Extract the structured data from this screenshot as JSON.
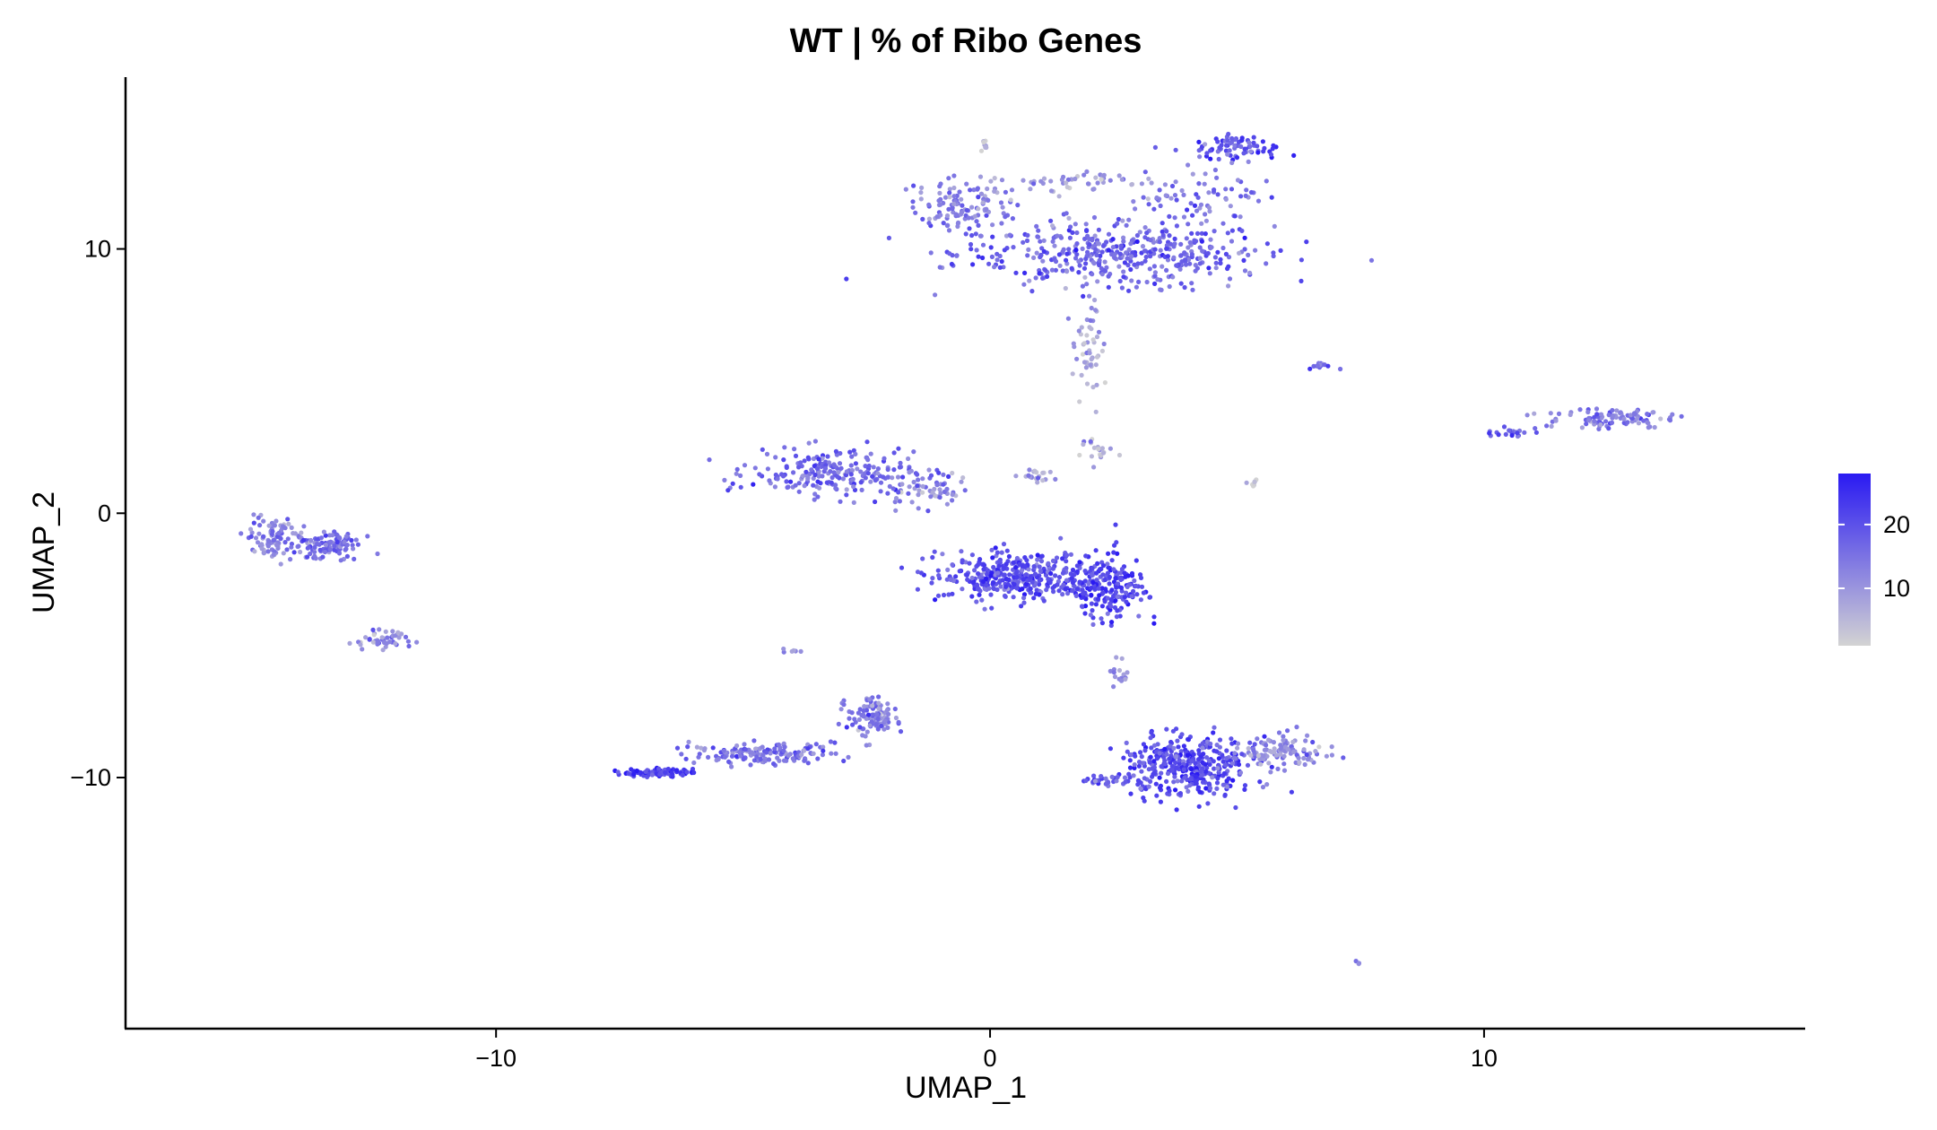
{
  "chart_data": {
    "type": "scatter",
    "title": "WT | % of Ribo Genes",
    "xlabel": "UMAP_1",
    "ylabel": "UMAP_2",
    "xlim": [
      -17.5,
      16.5
    ],
    "ylim": [
      -19.5,
      16.5
    ],
    "xticks": [
      {
        "value": -10,
        "label": "−10"
      },
      {
        "value": 0,
        "label": "0"
      },
      {
        "value": 10,
        "label": "10"
      }
    ],
    "yticks": [
      {
        "value": 10,
        "label": "10"
      },
      {
        "value": 0,
        "label": "0"
      },
      {
        "value": -10,
        "label": "−10"
      }
    ],
    "grid": false,
    "legend": {
      "position": "right",
      "type": "colorbar",
      "range": [
        1,
        28
      ],
      "ticks": [
        {
          "value": 20,
          "label": "20"
        },
        {
          "value": 10,
          "label": "10"
        }
      ],
      "low_color": "#d3d3d3",
      "high_color": "#2a1af2"
    },
    "clusters": [
      {
        "center": [
          2.5,
          9.8
        ],
        "spread": [
          2.9,
          1.1
        ],
        "n": 420,
        "level": 17
      },
      {
        "center": [
          4.0,
          12.0
        ],
        "spread": [
          1.8,
          1.0
        ],
        "n": 80,
        "level": 15
      },
      {
        "center": [
          -0.6,
          11.6
        ],
        "spread": [
          0.9,
          0.9
        ],
        "n": 120,
        "level": 13
      },
      {
        "center": [
          1.8,
          12.6
        ],
        "spread": [
          1.6,
          0.35
        ],
        "n": 50,
        "level": 9
      },
      {
        "center": [
          5.0,
          13.8
        ],
        "spread": [
          0.8,
          0.45
        ],
        "n": 80,
        "level": 20
      },
      {
        "center": [
          2.0,
          6.2
        ],
        "spread": [
          0.25,
          1.8
        ],
        "n": 50,
        "level": 7
      },
      {
        "center": [
          2.1,
          2.4
        ],
        "spread": [
          0.35,
          0.5
        ],
        "n": 20,
        "level": 6
      },
      {
        "center": [
          1.0,
          1.4
        ],
        "spread": [
          0.35,
          0.3
        ],
        "n": 20,
        "level": 8
      },
      {
        "center": [
          -3.2,
          1.5
        ],
        "spread": [
          1.5,
          0.75
        ],
        "n": 220,
        "level": 16
      },
      {
        "center": [
          -1.2,
          0.9
        ],
        "spread": [
          0.8,
          0.6
        ],
        "n": 60,
        "level": 12
      },
      {
        "center": [
          0.5,
          -2.4
        ],
        "spread": [
          1.4,
          0.8
        ],
        "n": 360,
        "level": 20
      },
      {
        "center": [
          2.4,
          -2.8
        ],
        "spread": [
          0.7,
          1.2
        ],
        "n": 200,
        "level": 22
      },
      {
        "center": [
          2.6,
          -6.0
        ],
        "spread": [
          0.15,
          0.7
        ],
        "n": 15,
        "level": 12
      },
      {
        "center": [
          4.0,
          -9.6
        ],
        "spread": [
          1.2,
          1.0
        ],
        "n": 360,
        "level": 21
      },
      {
        "center": [
          5.8,
          -9.0
        ],
        "spread": [
          0.9,
          0.6
        ],
        "n": 120,
        "level": 11
      },
      {
        "center": [
          2.4,
          -10.1
        ],
        "spread": [
          0.5,
          0.25
        ],
        "n": 30,
        "level": 18
      },
      {
        "center": [
          -2.4,
          -7.7
        ],
        "spread": [
          0.45,
          0.7
        ],
        "n": 110,
        "level": 14
      },
      {
        "center": [
          -4.6,
          -9.1
        ],
        "spread": [
          1.3,
          0.35
        ],
        "n": 150,
        "level": 15
      },
      {
        "center": [
          -6.7,
          -9.8
        ],
        "spread": [
          0.7,
          0.12
        ],
        "n": 80,
        "level": 22
      },
      {
        "center": [
          -14.5,
          -0.9
        ],
        "spread": [
          0.5,
          0.8
        ],
        "n": 100,
        "level": 13
      },
      {
        "center": [
          -13.4,
          -1.2
        ],
        "spread": [
          0.6,
          0.45
        ],
        "n": 110,
        "level": 15
      },
      {
        "center": [
          -12.4,
          -4.8
        ],
        "spread": [
          0.55,
          0.35
        ],
        "n": 50,
        "level": 12
      },
      {
        "center": [
          12.6,
          3.6
        ],
        "spread": [
          1.2,
          0.4
        ],
        "n": 100,
        "level": 14
      },
      {
        "center": [
          10.6,
          3.05
        ],
        "spread": [
          0.5,
          0.1
        ],
        "n": 20,
        "level": 18
      },
      {
        "center": [
          6.7,
          5.6
        ],
        "spread": [
          0.25,
          0.12
        ],
        "n": 14,
        "level": 16
      },
      {
        "center": [
          5.3,
          1.15
        ],
        "spread": [
          0.12,
          0.12
        ],
        "n": 8,
        "level": 4
      },
      {
        "center": [
          7.5,
          -17.0
        ],
        "spread": [
          0.05,
          0.05
        ],
        "n": 3,
        "level": 12
      },
      {
        "center": [
          -4.0,
          -5.2
        ],
        "spread": [
          0.2,
          0.12
        ],
        "n": 6,
        "level": 10
      },
      {
        "center": [
          -0.1,
          13.9
        ],
        "spread": [
          0.1,
          0.2
        ],
        "n": 8,
        "level": 5
      }
    ]
  }
}
